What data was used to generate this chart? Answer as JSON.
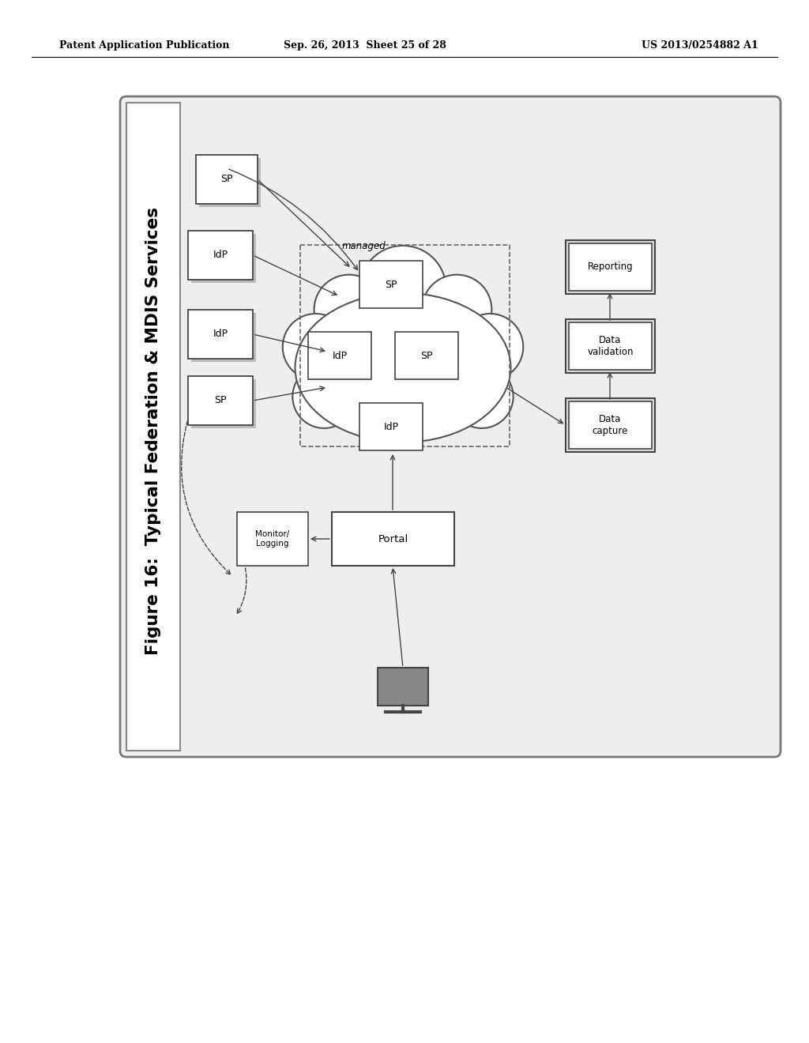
{
  "bg_color": "#ffffff",
  "header_left": "Patent Application Publication",
  "header_mid": "Sep. 26, 2013  Sheet 25 of 28",
  "header_right": "US 2013/0254882 A1",
  "figure_label": "Figure 16:  Typical Federation & MDIS Services"
}
